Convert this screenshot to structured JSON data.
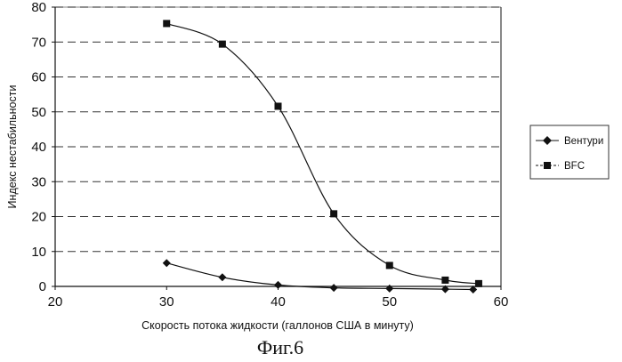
{
  "chart_data": {
    "type": "line",
    "title": "",
    "xlabel": "Скорость потока жидкости (галлонов США в минуту)",
    "ylabel": "Индекс нестабильности",
    "xlim": [
      20,
      60
    ],
    "ylim": [
      0,
      80
    ],
    "x_ticks": [
      20,
      30,
      40,
      50,
      60
    ],
    "y_ticks": [
      0,
      10,
      20,
      30,
      40,
      50,
      60,
      70,
      80
    ],
    "grid": "horizontal dashed",
    "legend_position": "right",
    "series": [
      {
        "name": "Вентури",
        "marker": "diamond",
        "x": [
          30,
          35,
          40,
          45,
          50,
          55,
          57.5
        ],
        "y": [
          6.7,
          2.6,
          0.4,
          -0.4,
          -0.6,
          -0.8,
          -0.9
        ]
      },
      {
        "name": "BFC",
        "marker": "square",
        "x": [
          30,
          35,
          40,
          45,
          50,
          55,
          58
        ],
        "y": [
          75.3,
          69.4,
          51.6,
          20.8,
          6.0,
          1.8,
          0.8
        ]
      }
    ]
  },
  "caption": "Фиг.6"
}
